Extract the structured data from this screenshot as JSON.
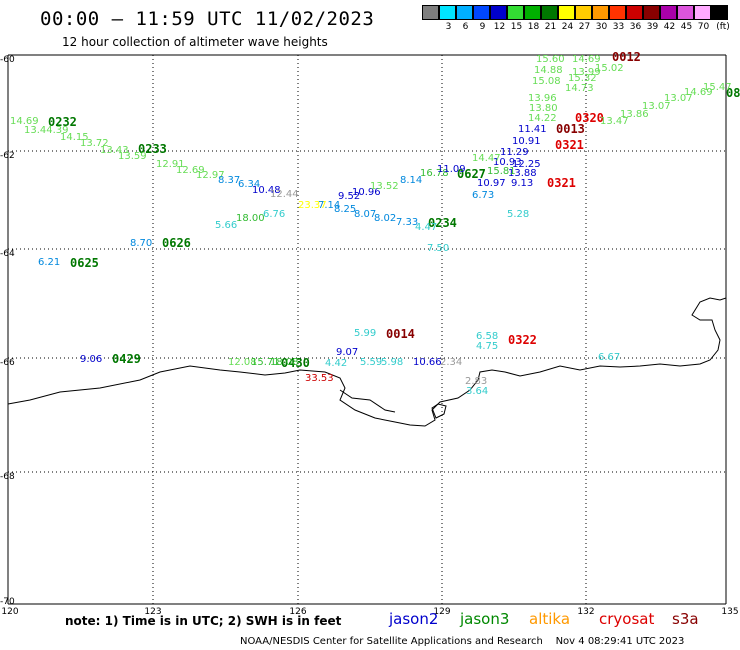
{
  "header": {
    "title": "00:00 – 11:59 UTC 11/02/2023",
    "subtitle": "12 hour collection of altimeter wave heights"
  },
  "legend": {
    "unit_label": "(ft)",
    "bins": [
      {
        "label": "",
        "color": "#7f7f7f"
      },
      {
        "label": "3",
        "color": "#00e5ff"
      },
      {
        "label": "6",
        "color": "#00b0ff"
      },
      {
        "label": "9",
        "color": "#0047ff"
      },
      {
        "label": "12",
        "color": "#0000cc"
      },
      {
        "label": "15",
        "color": "#33dd33"
      },
      {
        "label": "18",
        "color": "#00b000"
      },
      {
        "label": "21",
        "color": "#007700"
      },
      {
        "label": "24",
        "color": "#ffff00"
      },
      {
        "label": "27",
        "color": "#ffcc00"
      },
      {
        "label": "30",
        "color": "#ff9900"
      },
      {
        "label": "33",
        "color": "#ff3300"
      },
      {
        "label": "36",
        "color": "#cc0000"
      },
      {
        "label": "39",
        "color": "#880000"
      },
      {
        "label": "42",
        "color": "#aa00aa"
      },
      {
        "label": "45",
        "color": "#dd55dd"
      },
      {
        "label": "70",
        "color": "#ffaaff"
      },
      {
        "label": "",
        "color": "#000000"
      }
    ]
  },
  "axes": {
    "y_ticks": [
      "-60",
      "-62",
      "-64",
      "-66",
      "-68",
      "-70"
    ],
    "x_ticks": [
      "120",
      "123",
      "126",
      "129",
      "132",
      "135"
    ]
  },
  "footer": {
    "note": "note: 1) Time is in UTC; 2) SWH is in feet",
    "satellites": [
      {
        "name": "jason2",
        "color": "#0000cc"
      },
      {
        "name": "jason3",
        "color": "#008800"
      },
      {
        "name": "altika",
        "color": "#ff9900"
      },
      {
        "name": "cryosat",
        "color": "#dd0000"
      },
      {
        "name": "s3a",
        "color": "#880000"
      }
    ],
    "credit": "NOAA/NESDIS Center for Satellite Applications and Research",
    "timestamp": "Nov  4 08:29:41 UTC 2023"
  },
  "pass_labels": [
    {
      "text": "0232",
      "color": "#007700"
    },
    {
      "text": "0233",
      "color": "#007700"
    },
    {
      "text": "0626",
      "color": "#007700"
    },
    {
      "text": "0625",
      "color": "#007700"
    },
    {
      "text": "0627",
      "color": "#007700"
    },
    {
      "text": "0234",
      "color": "#007700"
    },
    {
      "text": "0429",
      "color": "#007700"
    },
    {
      "text": "0430",
      "color": "#007700"
    },
    {
      "text": "0014",
      "color": "#880000"
    },
    {
      "text": "0322",
      "color": "#dd0000"
    },
    {
      "text": "0320",
      "color": "#dd0000"
    },
    {
      "text": "0012",
      "color": "#880000"
    },
    {
      "text": "0013",
      "color": "#880000"
    },
    {
      "text": "0321",
      "color": "#dd0000"
    },
    {
      "text": "0321",
      "color": "#dd0000"
    },
    {
      "text": "08",
      "color": "#007700"
    }
  ],
  "swh_labels": [
    {
      "text": "14.69",
      "color": "#66dd55"
    },
    {
      "text": "13.44.39",
      "color": "#66dd55"
    },
    {
      "text": "14.15",
      "color": "#66dd55"
    },
    {
      "text": "13.72",
      "color": "#66dd55"
    },
    {
      "text": "13.43",
      "color": "#66dd55"
    },
    {
      "text": "13.59",
      "color": "#66dd55"
    },
    {
      "text": "12.91",
      "color": "#66dd55"
    },
    {
      "text": "12.69",
      "color": "#66dd55"
    },
    {
      "text": "12.97",
      "color": "#66dd55"
    },
    {
      "text": "8.37",
      "color": "#0088dd"
    },
    {
      "text": "6.34",
      "color": "#0088dd"
    },
    {
      "text": "10.48",
      "color": "#0000cc"
    },
    {
      "text": "12.44",
      "color": "#999999"
    },
    {
      "text": "23.37",
      "color": "#ffff00"
    },
    {
      "text": "7.14",
      "color": "#0088dd"
    },
    {
      "text": "9.52",
      "color": "#0000cc"
    },
    {
      "text": "10.96",
      "color": "#0000cc"
    },
    {
      "text": "13.52",
      "color": "#66dd55"
    },
    {
      "text": "8.14",
      "color": "#0088dd"
    },
    {
      "text": "16.78",
      "color": "#33bb33"
    },
    {
      "text": "18.00",
      "color": "#33bb33"
    },
    {
      "text": "6.76",
      "color": "#33cccc"
    },
    {
      "text": "5.66",
      "color": "#33cccc"
    },
    {
      "text": "8.25",
      "color": "#0088dd"
    },
    {
      "text": "8.07",
      "color": "#0088dd"
    },
    {
      "text": "8.02",
      "color": "#0088dd"
    },
    {
      "text": "7.33",
      "color": "#0088dd"
    },
    {
      "text": "4.47",
      "color": "#33cccc"
    },
    {
      "text": "7.50",
      "color": "#33cccc"
    },
    {
      "text": "8.70",
      "color": "#0088dd"
    },
    {
      "text": "6.21",
      "color": "#0088dd"
    },
    {
      "text": "11.09",
      "color": "#0000cc"
    },
    {
      "text": "10.97",
      "color": "#0000cc"
    },
    {
      "text": "6.73",
      "color": "#0088dd"
    },
    {
      "text": "5.28",
      "color": "#33cccc"
    },
    {
      "text": "9.13",
      "color": "#0000cc"
    },
    {
      "text": "10.93",
      "color": "#0000cc"
    },
    {
      "text": "12.25",
      "color": "#0000cc"
    },
    {
      "text": "13.88",
      "color": "#0000cc"
    },
    {
      "text": "11.29",
      "color": "#0000cc"
    },
    {
      "text": "10.91",
      "color": "#0000cc"
    },
    {
      "text": "11.41",
      "color": "#0000cc"
    },
    {
      "text": "15.81",
      "color": "#33bb33"
    },
    {
      "text": "14.47",
      "color": "#66dd55"
    },
    {
      "text": "15.08",
      "color": "#66dd55"
    },
    {
      "text": "14.88",
      "color": "#66dd55"
    },
    {
      "text": "13.99",
      "color": "#66dd55"
    },
    {
      "text": "13.96",
      "color": "#66dd55"
    },
    {
      "text": "13.80",
      "color": "#66dd55"
    },
    {
      "text": "14.22",
      "color": "#66dd55"
    },
    {
      "text": "14.73",
      "color": "#66dd55"
    },
    {
      "text": "15.32",
      "color": "#66dd55"
    },
    {
      "text": "15.02",
      "color": "#66dd55"
    },
    {
      "text": "15.60",
      "color": "#66dd55"
    },
    {
      "text": "14.69",
      "color": "#66dd55"
    },
    {
      "text": "13.47",
      "color": "#66dd55"
    },
    {
      "text": "13.86",
      "color": "#66dd55"
    },
    {
      "text": "13.07",
      "color": "#66dd55"
    },
    {
      "text": "13.07",
      "color": "#66dd55"
    },
    {
      "text": "14.69",
      "color": "#66dd55"
    },
    {
      "text": "15.47",
      "color": "#66dd55"
    },
    {
      "text": "5.99",
      "color": "#33cccc"
    },
    {
      "text": "6.58",
      "color": "#33cccc"
    },
    {
      "text": "4.75",
      "color": "#33cccc"
    },
    {
      "text": "9.06",
      "color": "#0000cc"
    },
    {
      "text": "12.08",
      "color": "#66dd55"
    },
    {
      "text": "15.71",
      "color": "#33bb33"
    },
    {
      "text": "18.08",
      "color": "#33bb33"
    },
    {
      "text": "33.53",
      "color": "#cc0000"
    },
    {
      "text": "9.07",
      "color": "#0000cc"
    },
    {
      "text": "4.42",
      "color": "#33cccc"
    },
    {
      "text": "5.59",
      "color": "#33cccc"
    },
    {
      "text": "5.98",
      "color": "#33cccc"
    },
    {
      "text": "10.66",
      "color": "#0000cc"
    },
    {
      "text": "2.34",
      "color": "#999999"
    },
    {
      "text": "2.83",
      "color": "#999999"
    },
    {
      "text": "3.64",
      "color": "#33cccc"
    },
    {
      "text": "6.67",
      "color": "#33cccc"
    }
  ]
}
